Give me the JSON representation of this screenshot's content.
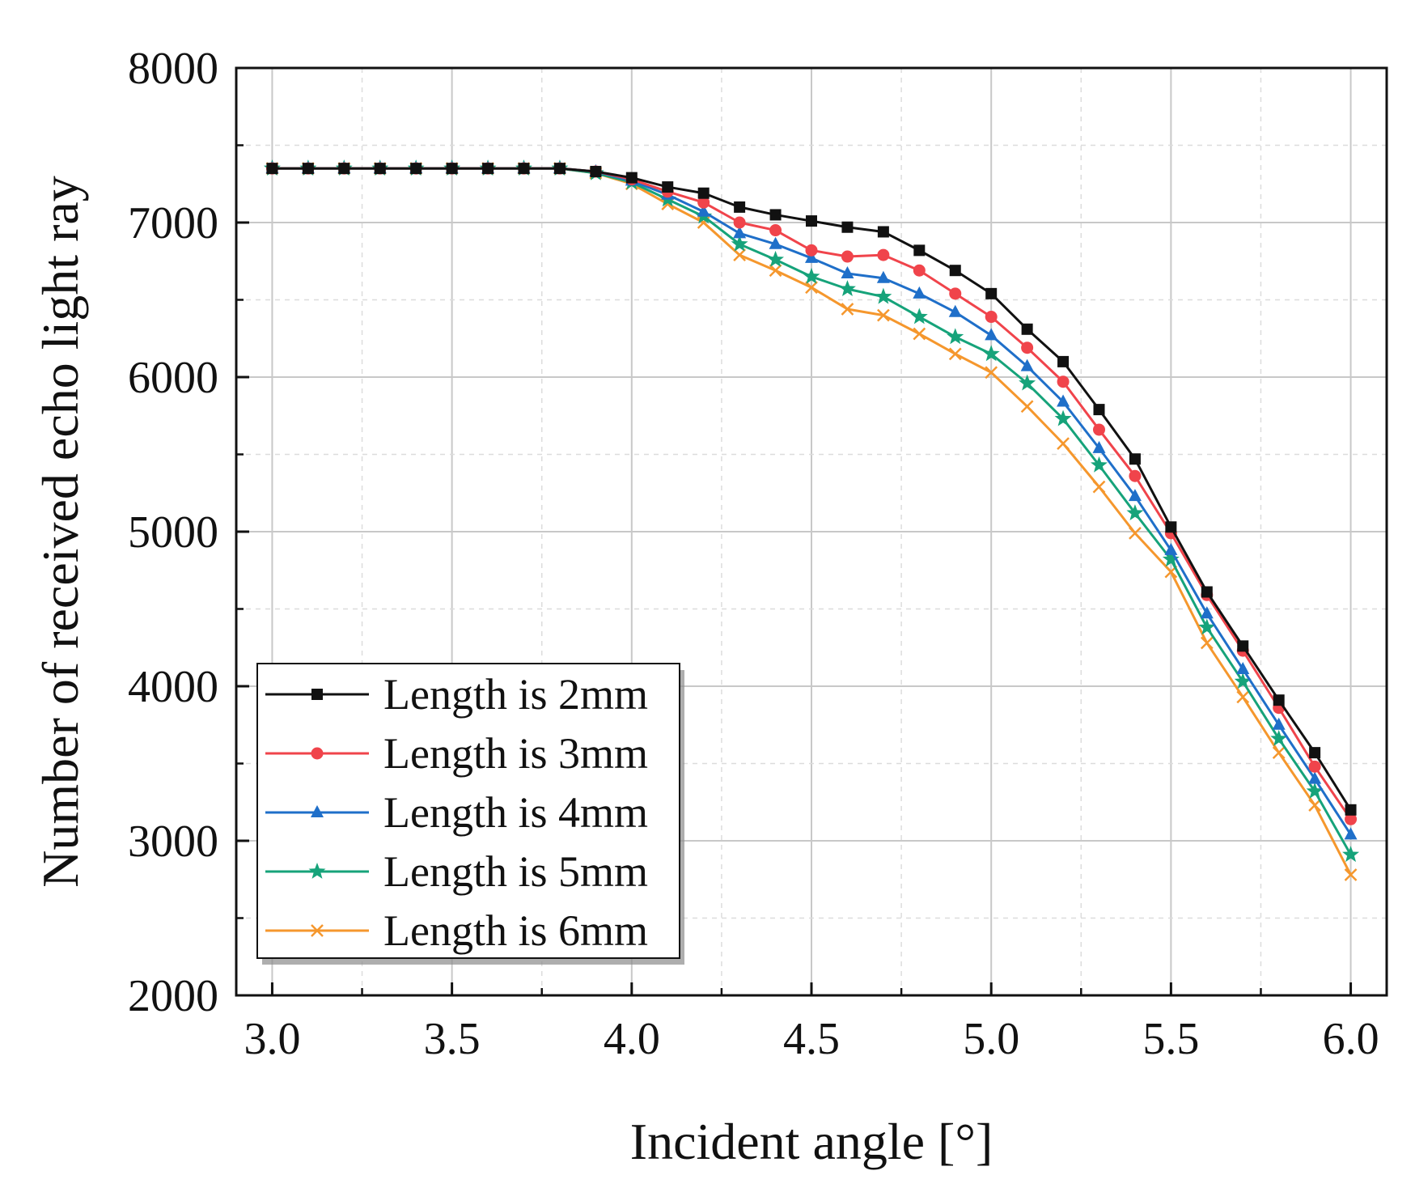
{
  "chart_data": {
    "type": "line",
    "title": "",
    "xlabel": "Incident angle [°]",
    "ylabel": "Number of received echo light ray",
    "xlim": [
      2.9,
      6.1
    ],
    "ylim": [
      2000,
      8000
    ],
    "xticks": [
      3.0,
      3.5,
      4.0,
      4.5,
      5.0,
      5.5,
      6.0
    ],
    "xtick_labels": [
      "3.0",
      "3.5",
      "4.0",
      "4.5",
      "5.0",
      "5.5",
      "6.0"
    ],
    "yticks": [
      2000,
      3000,
      4000,
      5000,
      6000,
      7000,
      8000
    ],
    "ytick_labels": [
      "2000",
      "3000",
      "4000",
      "5000",
      "6000",
      "7000",
      "8000"
    ],
    "grid": true,
    "legend_position": "bottom-left",
    "x": [
      3.0,
      3.1,
      3.2,
      3.3,
      3.4,
      3.5,
      3.6,
      3.7,
      3.8,
      3.9,
      4.0,
      4.1,
      4.2,
      4.3,
      4.4,
      4.5,
      4.6,
      4.7,
      4.8,
      4.9,
      5.0,
      5.1,
      5.2,
      5.3,
      5.4,
      5.5,
      5.6,
      5.7,
      5.8,
      5.9,
      6.0
    ],
    "series": [
      {
        "name": "Length is 2mm",
        "color": "#111111",
        "marker": "square",
        "values": [
          7350,
          7350,
          7350,
          7350,
          7350,
          7350,
          7350,
          7350,
          7350,
          7330,
          7290,
          7230,
          7190,
          7100,
          7050,
          7010,
          6970,
          6940,
          6820,
          6690,
          6540,
          6310,
          6100,
          5790,
          5470,
          5030,
          4610,
          4260,
          3910,
          3570,
          3200
        ]
      },
      {
        "name": "Length is 3mm",
        "color": "#f0444b",
        "marker": "circle",
        "values": [
          7350,
          7350,
          7350,
          7350,
          7350,
          7350,
          7350,
          7350,
          7350,
          7330,
          7280,
          7200,
          7130,
          7000,
          6950,
          6820,
          6780,
          6790,
          6690,
          6540,
          6390,
          6190,
          5970,
          5660,
          5360,
          4990,
          4590,
          4230,
          3860,
          3480,
          3140
        ]
      },
      {
        "name": "Length is 4mm",
        "color": "#1f6fc9",
        "marker": "triangle",
        "values": [
          7350,
          7350,
          7350,
          7350,
          7350,
          7350,
          7350,
          7350,
          7350,
          7330,
          7270,
          7180,
          7070,
          6930,
          6860,
          6770,
          6670,
          6640,
          6540,
          6420,
          6270,
          6070,
          5840,
          5540,
          5230,
          4880,
          4470,
          4110,
          3750,
          3400,
          3040
        ]
      },
      {
        "name": "Length is 5mm",
        "color": "#16a37a",
        "marker": "star",
        "values": [
          7350,
          7350,
          7350,
          7350,
          7350,
          7350,
          7350,
          7350,
          7350,
          7320,
          7260,
          7150,
          7040,
          6860,
          6760,
          6650,
          6570,
          6520,
          6390,
          6260,
          6150,
          5960,
          5730,
          5430,
          5120,
          4820,
          4380,
          4030,
          3660,
          3320,
          2910
        ]
      },
      {
        "name": "Length is 6mm",
        "color": "#f5972d",
        "marker": "x",
        "values": [
          7350,
          7350,
          7350,
          7350,
          7350,
          7350,
          7350,
          7350,
          7350,
          7320,
          7250,
          7120,
          7000,
          6790,
          6690,
          6580,
          6440,
          6400,
          6280,
          6150,
          6030,
          5810,
          5570,
          5290,
          4990,
          4740,
          4280,
          3930,
          3570,
          3230,
          2780
        ]
      }
    ]
  }
}
